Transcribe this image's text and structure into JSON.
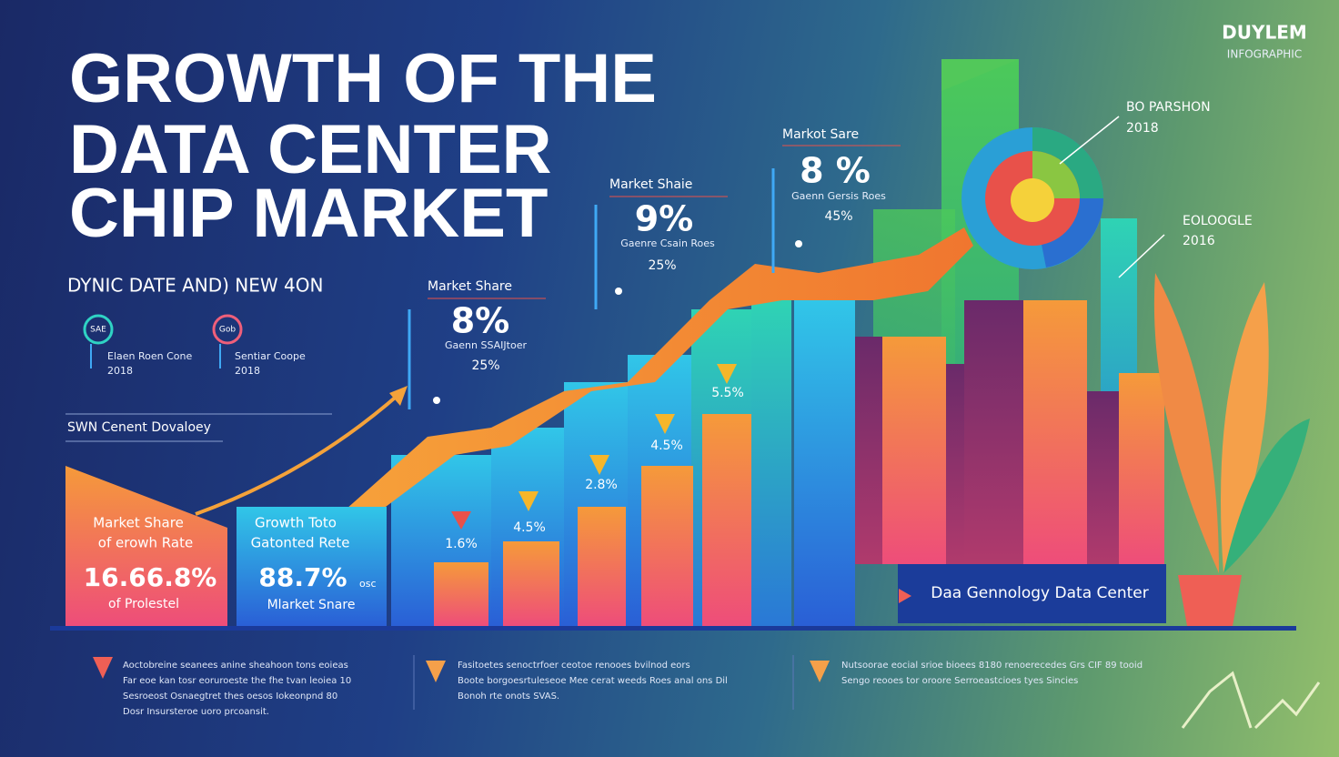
{
  "brand": {
    "name": "DUYLEM",
    "subtitle": "INFOGRAPHIC"
  },
  "title": [
    "GROWTH OF THE",
    "DATA CENTER",
    "CHIP MARKET"
  ],
  "subtitle": "DYNIC DATE AND) NEW 4ON",
  "icons": [
    {
      "badge": "SAE",
      "label": "Elaen Roen Cone",
      "value": "2018"
    },
    {
      "badge": "Gob",
      "label": "Sentiar Coope",
      "value": "2018"
    }
  ],
  "section_label": "SWN Cenent Dovaloey",
  "callouts": [
    {
      "title": "Market Share",
      "value": "8%",
      "caption": "Gaenn SSAIJtoer",
      "sub": "25%"
    },
    {
      "title": "Market Shaie",
      "value": "9%",
      "caption": "Gaenre Csain Roes",
      "sub": "25%"
    },
    {
      "title": "Markot Sare",
      "value": "8 %",
      "caption": "Gaenn Gersis Roes",
      "sub": "45%"
    }
  ],
  "boxes": [
    {
      "line1": "Market Share",
      "line2": "of erowh Rate",
      "value": "16.66.8%",
      "foot": "of Prolestel"
    },
    {
      "line1": "Growth Toto",
      "line2": "Gatonted Rete",
      "value": "88.7%",
      "tail": "osc",
      "foot": "Mlarket Snare"
    }
  ],
  "bar_labels": [
    "1.6%",
    "4.5%",
    "2.8%",
    "4.5%",
    "5.5%"
  ],
  "side_notes": [
    {
      "title": "BO PARSHON",
      "year": "2018"
    },
    {
      "title": "EOLOOGLE",
      "year": "2016"
    }
  ],
  "banner": "Daa Gennology Data Center",
  "footer": [
    [
      "Aoctobreine seanees anine sheahoon tons eoieas",
      "Far eoe kan tosr eoruroeste the fhe tvan leoiea 10",
      "Sesroeost Osnaegtret thes oesos Iokeonpnd 80",
      "Dosr Insursteroe uoro prcoansit."
    ],
    [
      "Fasitoetes senoctrfoer ceotoe renooes bvilnod eors",
      "Boote borgoesrtuleseoe Mee cerat weeds Roes anal ons Dil",
      "Bonoh rte onots SVAS."
    ],
    [
      "Nutsoorae eocial srioe bioees 8180 renoerecedes Grs CIF 89 tooid",
      "Sengo reooes tor oroore Serroeastcioes tyes Sincies"
    ]
  ]
}
